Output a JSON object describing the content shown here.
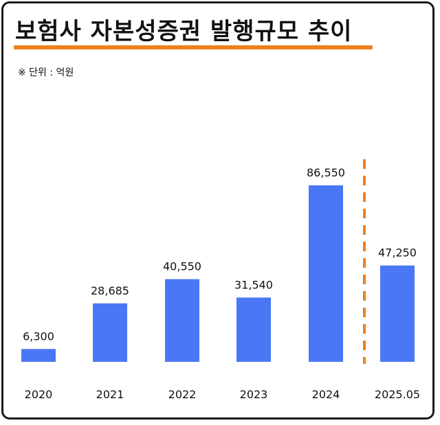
{
  "header": {
    "title": "보험사 자본성증권 발행규모 추이",
    "unit": "※ 단위 : 억원"
  },
  "colors": {
    "bar": "#4a77f5",
    "accent": "#f07f1e",
    "text": "#111111"
  },
  "chart_data": {
    "type": "bar",
    "title": "보험사 자본성증권 발행규모 추이",
    "categories": [
      "2020",
      "2021",
      "2022",
      "2023",
      "2024",
      "2025.05"
    ],
    "values": [
      6300,
      28685,
      40550,
      31540,
      86550,
      47250
    ],
    "value_labels": [
      "6,300",
      "28,685",
      "40,550",
      "31,540",
      "86,550",
      "47,250"
    ],
    "ylim": [
      0,
      86550
    ],
    "grid": false,
    "legend": "none",
    "annotations": [
      {
        "type": "dashed-divider",
        "between": [
          "2024",
          "2025.05"
        ]
      }
    ]
  }
}
